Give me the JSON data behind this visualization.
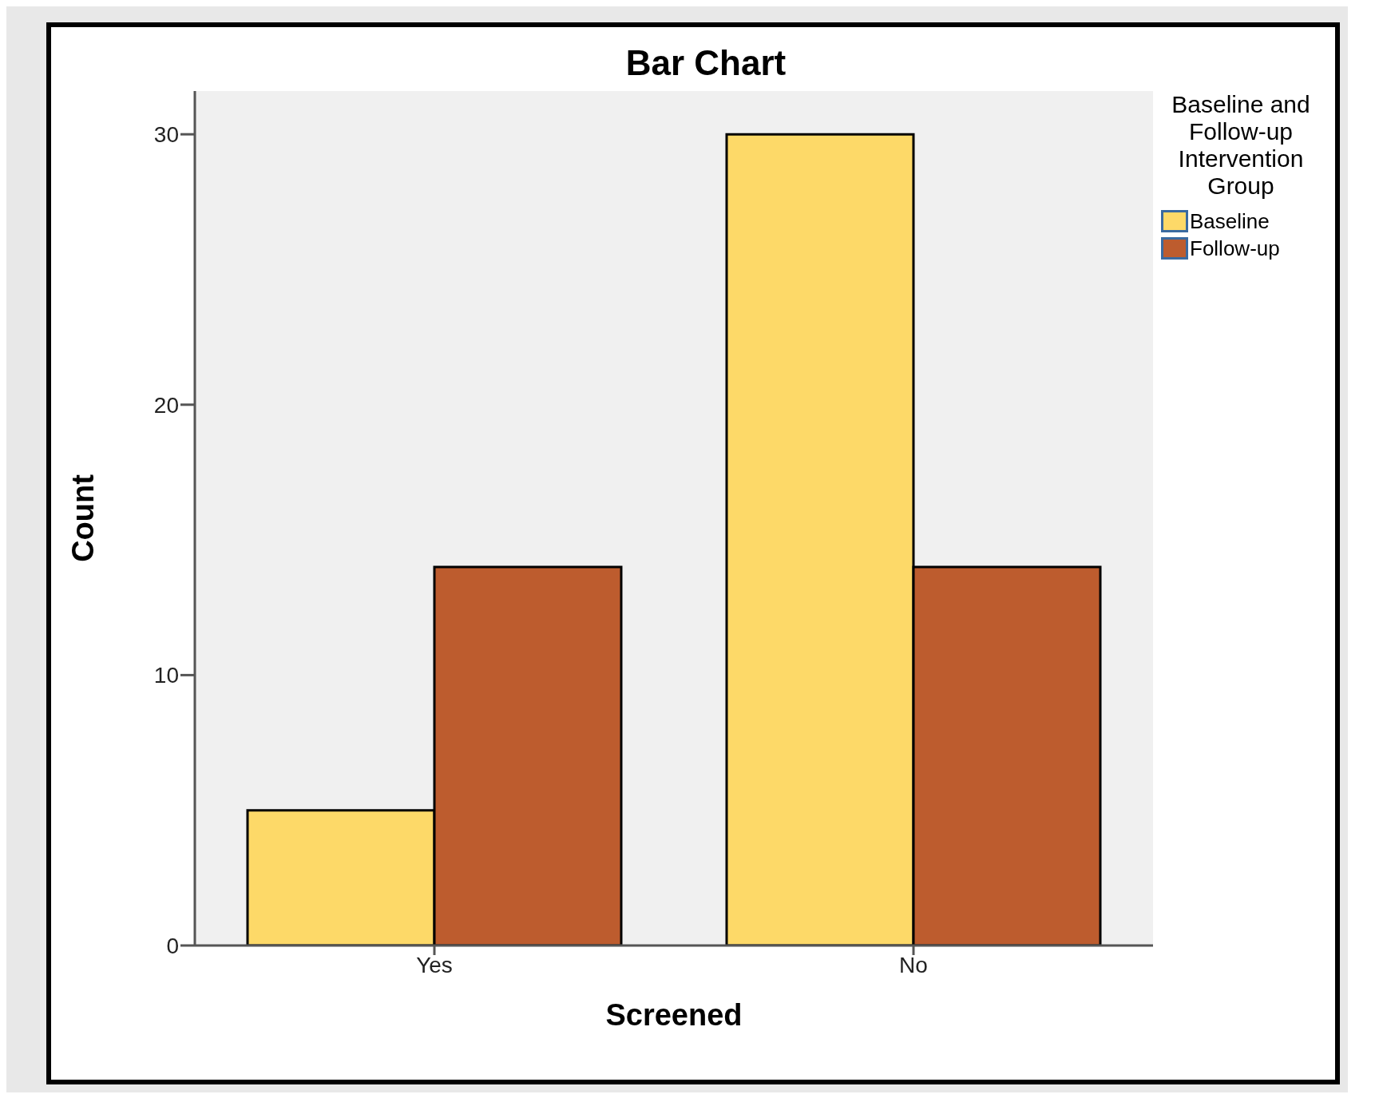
{
  "chart_data": {
    "type": "bar",
    "title": "Bar Chart",
    "xlabel": "Screened",
    "ylabel": "Count",
    "legend_title": "Baseline and Follow-up Intervention Group",
    "categories": [
      "Yes",
      "No"
    ],
    "series": [
      {
        "name": "Baseline",
        "color": "#fdd968",
        "values": [
          5,
          30
        ]
      },
      {
        "name": "Follow-up",
        "color": "#bd5c2e",
        "values": [
          14,
          14
        ]
      }
    ],
    "ylim": [
      0,
      31.6
    ],
    "yticks": [
      0,
      10,
      20,
      30
    ],
    "legend": "top right"
  }
}
